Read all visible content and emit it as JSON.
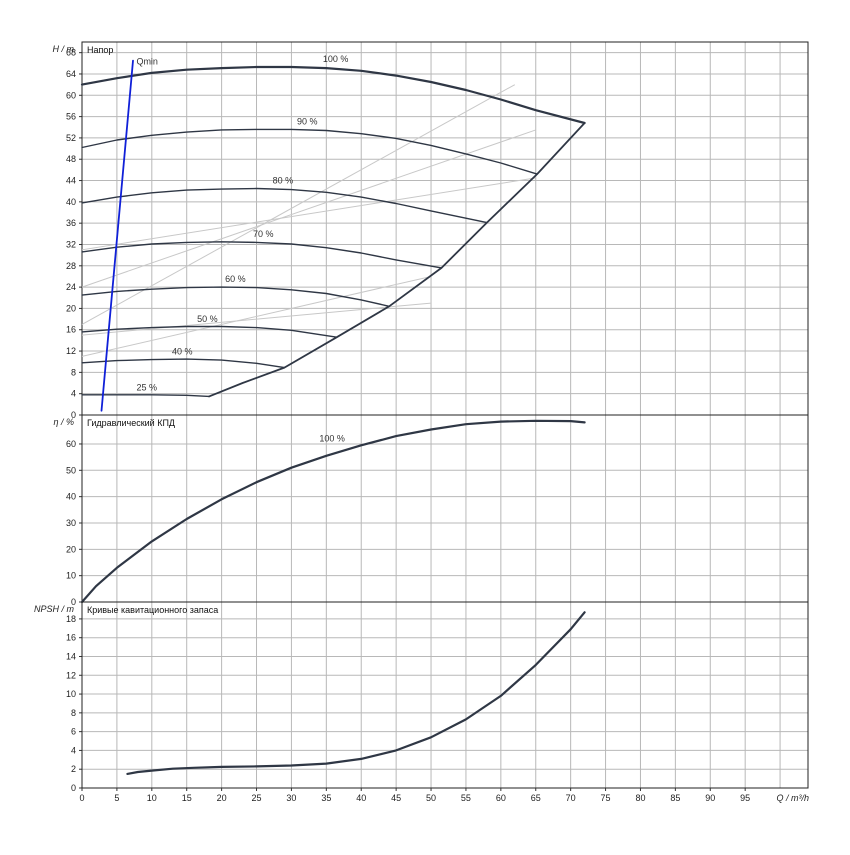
{
  "chart_data": [
    {
      "type": "line",
      "title": "Напор",
      "ylabel": "H / m",
      "xlim": [
        0,
        104
      ],
      "ylim": [
        0,
        70
      ],
      "yticks": [
        0,
        4,
        8,
        12,
        16,
        20,
        24,
        28,
        32,
        36,
        40,
        44,
        48,
        52,
        56,
        60,
        64,
        68
      ],
      "grid": true,
      "series": [
        {
          "name": "100 %",
          "x": [
            0,
            5,
            10,
            15,
            20,
            25,
            30,
            35,
            40,
            45,
            50,
            55,
            60,
            65,
            72
          ],
          "y": [
            62,
            63.2,
            64.2,
            64.8,
            65.1,
            65.3,
            65.3,
            65.1,
            64.6,
            63.7,
            62.5,
            61.0,
            59.2,
            57.2,
            54.8
          ]
        },
        {
          "name": "90 %",
          "x": [
            0,
            5,
            10,
            15,
            20,
            25,
            30,
            35,
            40,
            45,
            50,
            55,
            60,
            65.2
          ],
          "y": [
            50.2,
            51.6,
            52.5,
            53.1,
            53.5,
            53.6,
            53.6,
            53.4,
            52.8,
            51.9,
            50.6,
            49.0,
            47.3,
            45.2
          ]
        },
        {
          "name": "80 %",
          "x": [
            0,
            5,
            10,
            15,
            20,
            25,
            30,
            35,
            40,
            45,
            50,
            58
          ],
          "y": [
            39.8,
            40.9,
            41.7,
            42.2,
            42.4,
            42.5,
            42.3,
            41.8,
            40.9,
            39.7,
            38.3,
            36.1
          ]
        },
        {
          "name": "70 %",
          "x": [
            0,
            5,
            10,
            15,
            20,
            25,
            30,
            35,
            40,
            45,
            51.5
          ],
          "y": [
            30.6,
            31.5,
            32.1,
            32.4,
            32.5,
            32.4,
            32.1,
            31.4,
            30.4,
            29.1,
            27.6
          ]
        },
        {
          "name": "60 %",
          "x": [
            0,
            5,
            10,
            15,
            20,
            25,
            30,
            35,
            40,
            44
          ],
          "y": [
            22.5,
            23.2,
            23.6,
            23.9,
            24.0,
            23.9,
            23.5,
            22.8,
            21.6,
            20.4
          ]
        },
        {
          "name": "50 %",
          "x": [
            0,
            5,
            10,
            15,
            20,
            25,
            30,
            36.5
          ],
          "y": [
            15.6,
            16.1,
            16.4,
            16.6,
            16.6,
            16.4,
            15.9,
            14.6
          ]
        },
        {
          "name": "40 %",
          "x": [
            0,
            5,
            10,
            15,
            20,
            25,
            29
          ],
          "y": [
            9.8,
            10.2,
            10.4,
            10.5,
            10.3,
            9.7,
            8.9
          ]
        },
        {
          "name": "25 %",
          "x": [
            0,
            5,
            10,
            15,
            18.2
          ],
          "y": [
            3.8,
            3.8,
            3.8,
            3.7,
            3.5
          ]
        },
        {
          "name": "",
          "role": "limit",
          "x": [
            18.2,
            23,
            29,
            36.5,
            44,
            51.5,
            58,
            65.2,
            72
          ],
          "y": [
            3.5,
            6.0,
            8.9,
            14.6,
            20.4,
            27.6,
            36.1,
            45.2,
            54.8
          ]
        },
        {
          "name": "Qmin",
          "role": "qmin",
          "x": [
            2.8,
            7.3
          ],
          "y": [
            0.8,
            66.5
          ]
        }
      ],
      "annotations": [
        {
          "text": "Qmin",
          "x": 7.8,
          "y": 65.8
        },
        {
          "text": "100 %",
          "x": 34.5,
          "y": 66.2
        },
        {
          "text": "90 %",
          "x": 30.8,
          "y": 54.5
        },
        {
          "text": "80 %",
          "x": 27.3,
          "y": 43.4
        },
        {
          "text": "70 %",
          "x": 24.5,
          "y": 33.4
        },
        {
          "text": "60 %",
          "x": 20.5,
          "y": 25.0
        },
        {
          "text": "50 %",
          "x": 16.5,
          "y": 17.5
        },
        {
          "text": "40 %",
          "x": 12.9,
          "y": 11.4
        },
        {
          "text": "25 %",
          "x": 7.8,
          "y": 4.6
        }
      ],
      "efficiency_contours": [
        {
          "x": [
            0,
            62
          ],
          "y": [
            17.0,
            62.0
          ]
        },
        {
          "x": [
            0,
            65
          ],
          "y": [
            24.0,
            53.5
          ]
        },
        {
          "x": [
            0,
            65
          ],
          "y": [
            31.0,
            44.5
          ]
        },
        {
          "x": [
            0,
            50
          ],
          "y": [
            11.0,
            26.0
          ]
        },
        {
          "x": [
            0,
            50
          ],
          "y": [
            15.0,
            21.0
          ]
        }
      ]
    },
    {
      "type": "line",
      "title": "Гидравлический КПД",
      "ylabel": "η / %",
      "xlim": [
        0,
        104
      ],
      "ylim": [
        0,
        71
      ],
      "yticks": [
        0,
        10,
        20,
        30,
        40,
        50,
        60
      ],
      "grid": true,
      "series": [
        {
          "name": "100 %",
          "x": [
            0,
            2,
            5,
            10,
            15,
            20,
            25,
            30,
            35,
            40,
            45,
            50,
            55,
            60,
            65,
            70,
            72
          ],
          "y": [
            0,
            6,
            13,
            23,
            31.5,
            39,
            45.5,
            51,
            55.5,
            59.5,
            63,
            65.5,
            67.5,
            68.5,
            68.8,
            68.7,
            68.2
          ]
        }
      ],
      "annotations": [
        {
          "text": "100 %",
          "x": 34,
          "y": 61
        }
      ]
    },
    {
      "type": "line",
      "title": "Кривые кавитационного запаса",
      "ylabel": "NPSH / m",
      "xlabel": "Q / m³/h",
      "xlim": [
        0,
        104
      ],
      "ylim": [
        0,
        19.8
      ],
      "xticks": [
        0,
        5,
        10,
        15,
        20,
        25,
        30,
        35,
        40,
        45,
        50,
        55,
        60,
        65,
        70,
        75,
        80,
        85,
        90,
        95
      ],
      "yticks": [
        0,
        2,
        4,
        6,
        8,
        10,
        12,
        14,
        16,
        18
      ],
      "grid": true,
      "series": [
        {
          "name": "",
          "x": [
            6.5,
            8,
            10,
            13,
            16,
            20,
            25,
            30,
            35,
            40,
            45,
            50,
            55,
            60,
            65,
            70,
            72
          ],
          "y": [
            1.5,
            1.7,
            1.85,
            2.05,
            2.15,
            2.25,
            2.3,
            2.4,
            2.6,
            3.1,
            4.0,
            5.4,
            7.3,
            9.8,
            13.1,
            16.9,
            18.7
          ]
        }
      ]
    }
  ]
}
